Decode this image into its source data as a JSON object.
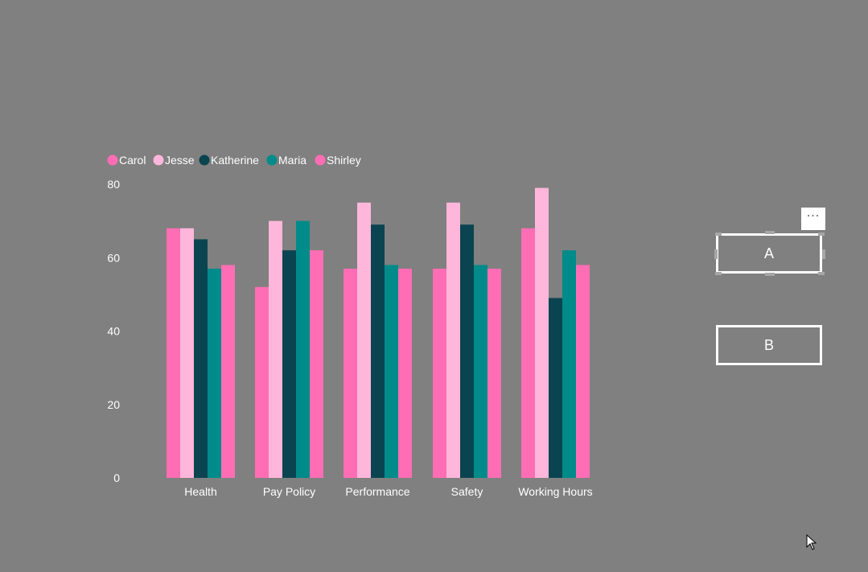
{
  "chart_data": {
    "type": "bar",
    "title": "",
    "xlabel": "",
    "ylabel": "",
    "categories": [
      "Health",
      "Pay Policy",
      "Performance",
      "Safety",
      "Working Hours"
    ],
    "series": [
      {
        "name": "Carol",
        "color": "#ff6eb4",
        "values": [
          68,
          52,
          57,
          57,
          68
        ]
      },
      {
        "name": "Jesse",
        "color": "#ffb6da",
        "values": [
          68,
          70,
          75,
          75,
          79
        ]
      },
      {
        "name": "Katherine",
        "color": "#0a4450",
        "values": [
          65,
          62,
          69,
          69,
          49
        ]
      },
      {
        "name": "Maria",
        "color": "#008b8b",
        "values": [
          57,
          70,
          58,
          58,
          62
        ]
      },
      {
        "name": "Shirley",
        "color": "#ff6eb4",
        "values": [
          58,
          62,
          57,
          57,
          58
        ]
      }
    ],
    "ylim": [
      0,
      80
    ],
    "yticks": [
      0,
      20,
      40,
      60,
      80
    ],
    "grid": false,
    "legend_position": "top-left"
  },
  "slicer": {
    "button_a_label": "A",
    "button_b_label": "B",
    "more_options_label": "···"
  },
  "colors": {
    "background": "#7f807f",
    "text": "#ffffff"
  }
}
